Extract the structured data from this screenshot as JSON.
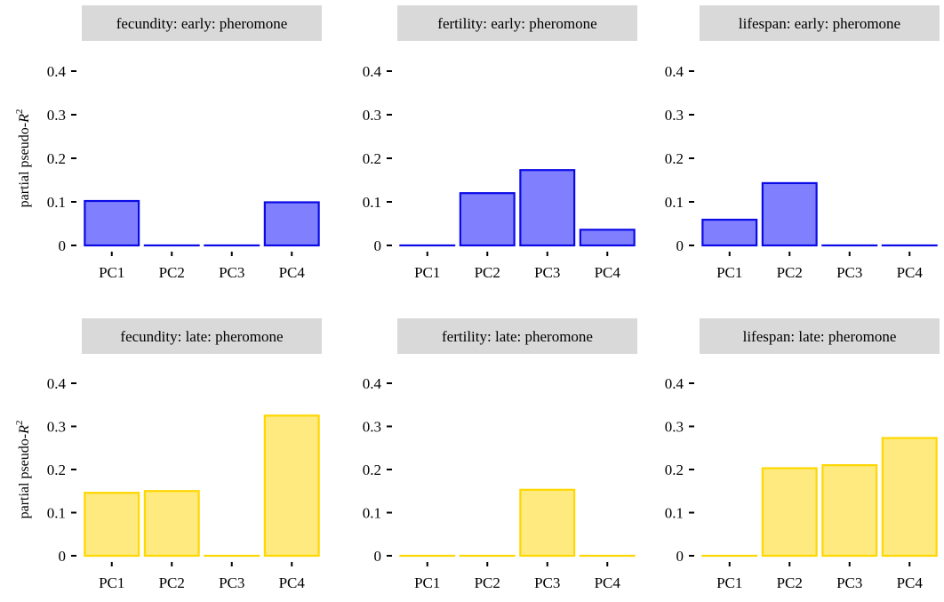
{
  "ylabel_prefix": "partial pseudo-",
  "ylabel_var": "R",
  "ylabel_exp": "2",
  "colors": {
    "early_fill": "#8080ff",
    "early_stroke": "#0a0ae6",
    "late_fill": "#ffea80",
    "late_stroke": "#ffd700",
    "strip_bg": "#d9d9d9"
  },
  "chart_data": [
    {
      "type": "bar",
      "title": "fecundity: early: pheromone",
      "categories": [
        "PC1",
        "PC2",
        "PC3",
        "PC4"
      ],
      "values": [
        0.102,
        0,
        0,
        0.099
      ],
      "ylim": [
        0,
        0.4
      ],
      "yticks": [
        0,
        0.1,
        0.2,
        0.3,
        0.4
      ],
      "ytick_labels": [
        "0",
        "0.1",
        "0.2",
        "0.3",
        "0.4"
      ],
      "group": "early"
    },
    {
      "type": "bar",
      "title": "fertility: early: pheromone",
      "categories": [
        "PC1",
        "PC2",
        "PC3",
        "PC4"
      ],
      "values": [
        0,
        0.12,
        0.173,
        0.036
      ],
      "ylim": [
        0,
        0.4
      ],
      "yticks": [
        0,
        0.1,
        0.2,
        0.3,
        0.4
      ],
      "ytick_labels": [
        "0",
        "0.1",
        "0.2",
        "0.3",
        "0.4"
      ],
      "group": "early"
    },
    {
      "type": "bar",
      "title": "lifespan: early: pheromone",
      "categories": [
        "PC1",
        "PC2",
        "PC3",
        "PC4"
      ],
      "values": [
        0.059,
        0.143,
        0,
        0
      ],
      "ylim": [
        0,
        0.4
      ],
      "yticks": [
        0,
        0.1,
        0.2,
        0.3,
        0.4
      ],
      "ytick_labels": [
        "0",
        "0.1",
        "0.2",
        "0.3",
        "0.4"
      ],
      "group": "early"
    },
    {
      "type": "bar",
      "title": "fecundity: late: pheromone",
      "categories": [
        "PC1",
        "PC2",
        "PC3",
        "PC4"
      ],
      "values": [
        0.146,
        0.15,
        0,
        0.325
      ],
      "ylim": [
        0,
        0.4
      ],
      "yticks": [
        0,
        0.1,
        0.2,
        0.3,
        0.4
      ],
      "ytick_labels": [
        "0",
        "0.1",
        "0.2",
        "0.3",
        "0.4"
      ],
      "group": "late"
    },
    {
      "type": "bar",
      "title": "fertility: late: pheromone",
      "categories": [
        "PC1",
        "PC2",
        "PC3",
        "PC4"
      ],
      "values": [
        0,
        0,
        0.153,
        0
      ],
      "ylim": [
        0,
        0.4
      ],
      "yticks": [
        0,
        0.1,
        0.2,
        0.3,
        0.4
      ],
      "ytick_labels": [
        "0",
        "0.1",
        "0.2",
        "0.3",
        "0.4"
      ],
      "group": "late"
    },
    {
      "type": "bar",
      "title": "lifespan: late: pheromone",
      "categories": [
        "PC1",
        "PC2",
        "PC3",
        "PC4"
      ],
      "values": [
        0,
        0.203,
        0.21,
        0.273
      ],
      "ylim": [
        0,
        0.4
      ],
      "yticks": [
        0,
        0.1,
        0.2,
        0.3,
        0.4
      ],
      "ytick_labels": [
        "0",
        "0.1",
        "0.2",
        "0.3",
        "0.4"
      ],
      "group": "late"
    }
  ]
}
